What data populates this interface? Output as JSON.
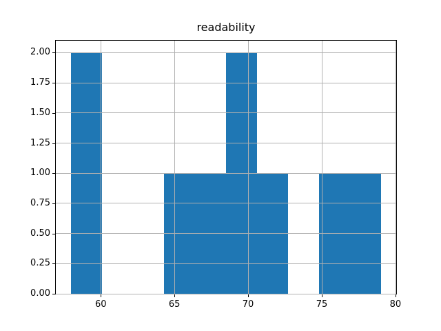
{
  "figure": {
    "background": "#ffffff"
  },
  "chart_data": {
    "type": "histogram",
    "title": "readability",
    "xlabel": "",
    "ylabel": "",
    "bin_edges": [
      58.0,
      60.1,
      62.2,
      64.3,
      66.4,
      68.5,
      70.6,
      72.7,
      74.8,
      76.9,
      79.0
    ],
    "counts": [
      2,
      0,
      0,
      1,
      1,
      2,
      1,
      0,
      1,
      1
    ],
    "xlim": [
      56.95,
      80.05
    ],
    "ylim": [
      0,
      2.1
    ],
    "x_ticks": [
      60,
      65,
      70,
      75,
      80
    ],
    "x_tick_labels": [
      "60",
      "65",
      "70",
      "75",
      "80"
    ],
    "y_ticks": [
      0,
      0.25,
      0.5,
      0.75,
      1.0,
      1.25,
      1.5,
      1.75,
      2.0
    ],
    "y_tick_labels": [
      "0.00",
      "0.25",
      "0.50",
      "0.75",
      "1.00",
      "1.25",
      "1.50",
      "1.75",
      "2.00"
    ],
    "grid": true,
    "grid_above_bars": true,
    "legend": null,
    "colors": {
      "bar": "#1f77b4",
      "grid": "#b0b0b0",
      "spine": "#000000",
      "text": "#000000"
    }
  }
}
